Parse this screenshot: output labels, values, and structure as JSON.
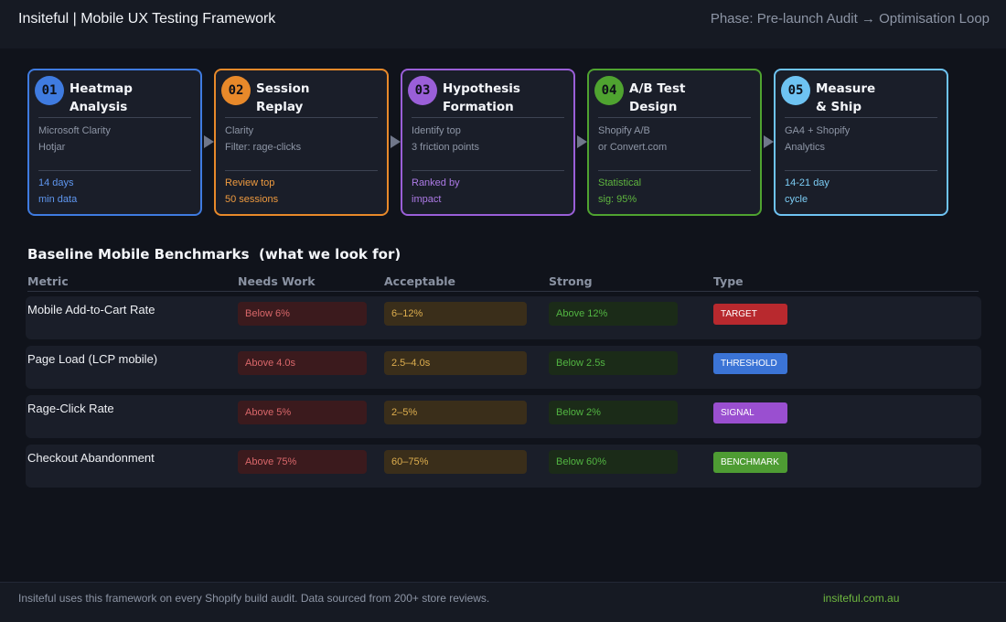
{
  "header": {
    "title": "Insiteful | Mobile UX Testing Framework",
    "phase": "Phase: Pre-launch Audit → Optimisation Loop"
  },
  "steps": [
    {
      "num": "01",
      "heading": "Heatmap\nAnalysis",
      "tool": "Microsoft Clarity\nHotjar",
      "meta": "14 days\nmin data",
      "color": "#3f7be0",
      "meta_color": "#5f97f0"
    },
    {
      "num": "02",
      "heading": "Session\nReplay",
      "tool": "Clarity\nFilter: rage-clicks",
      "meta": "Review top\n50 sessions",
      "color": "#e8892a",
      "meta_color": "#ee9a3f"
    },
    {
      "num": "03",
      "heading": "Hypothesis\nFormation",
      "tool": "Identify top\n3 friction points",
      "meta": "Ranked by\nimpact",
      "color": "#9a5fd8",
      "meta_color": "#ad7ae6"
    },
    {
      "num": "04",
      "heading": "A/B Test\nDesign",
      "tool": "Shopify A/B\nor Convert.com",
      "meta": "Statistical\nsig: 95%",
      "color": "#4fa330",
      "meta_color": "#5fb53f"
    },
    {
      "num": "05",
      "heading": "Measure\n& Ship",
      "tool": "GA4 + Shopify\nAnalytics",
      "meta": "14-21 day\ncycle",
      "color": "#6ec3f2",
      "meta_color": "#7ccdf5"
    }
  ],
  "benchmarks": {
    "title": "Baseline Mobile Benchmarks  (what we look for)",
    "columns": [
      "Metric",
      "Needs Work",
      "Acceptable",
      "Strong",
      "Type"
    ],
    "rows": [
      {
        "metric": "Mobile Add-to-Cart Rate",
        "needs_work": "Below 6%",
        "acceptable": "6–12%",
        "strong": "Above 12%",
        "type": "TARGET",
        "type_color": "#b8292e"
      },
      {
        "metric": "Page Load (LCP mobile)",
        "needs_work": "Above 4.0s",
        "acceptable": "2.5–4.0s",
        "strong": "Below 2.5s",
        "type": "THRESHOLD",
        "type_color": "#3b74d6"
      },
      {
        "metric": "Rage-Click Rate",
        "needs_work": "Above 5%",
        "acceptable": "2–5%",
        "strong": "Below 2%",
        "type": "SIGNAL",
        "type_color": "#9a4fd0"
      },
      {
        "metric": "Checkout Abandonment",
        "needs_work": "Above 75%",
        "acceptable": "60–75%",
        "strong": "Below 60%",
        "type": "BENCHMARK",
        "type_color": "#4e9c33"
      }
    ]
  },
  "footer": {
    "note": "Insiteful uses this framework on every Shopify build audit. Data sourced from 200+ store reviews.",
    "site": "insiteful.com.au"
  }
}
